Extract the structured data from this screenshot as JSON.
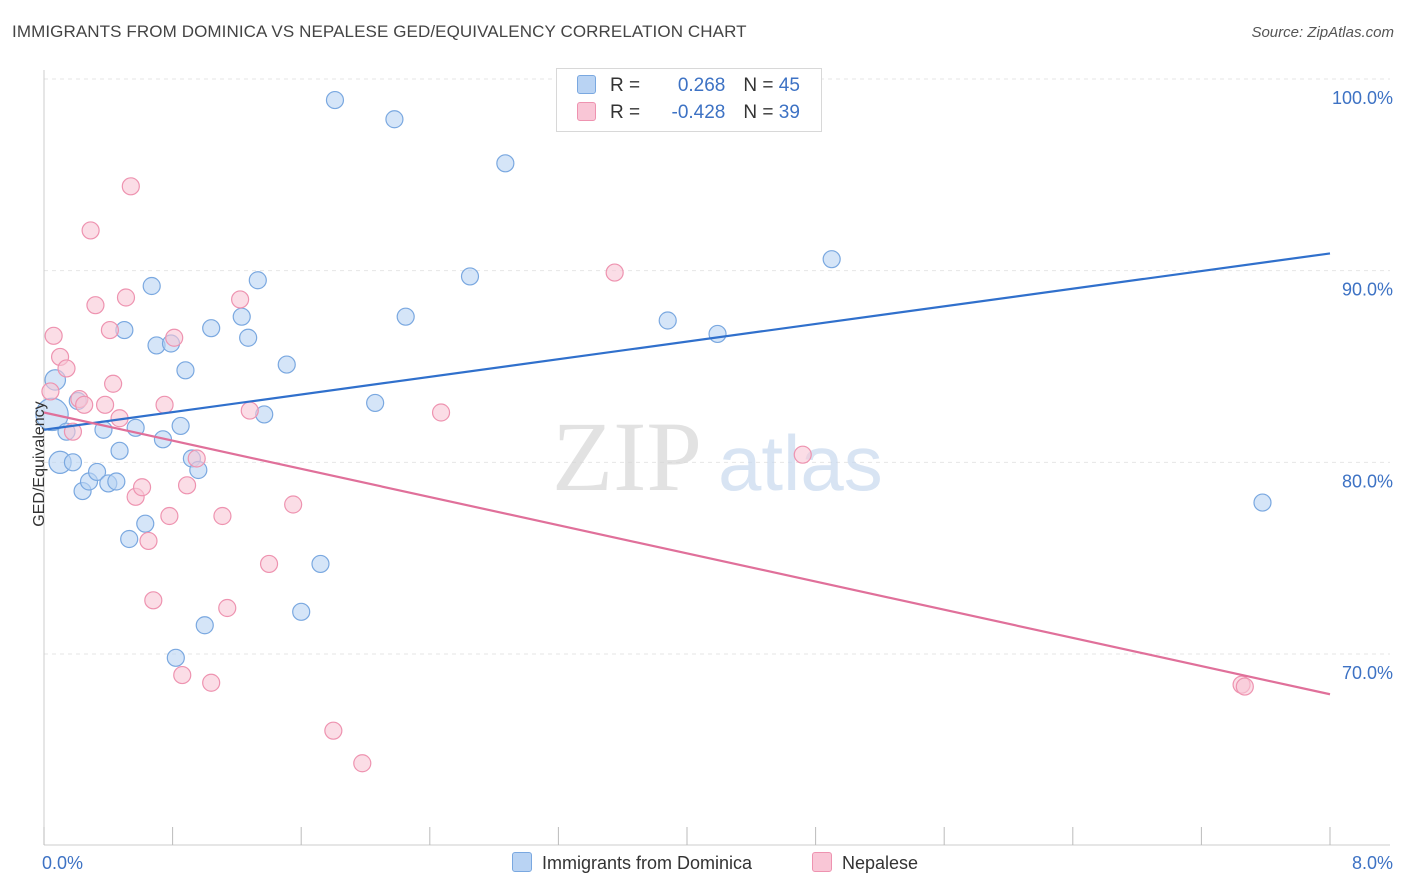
{
  "title": "IMMIGRANTS FROM DOMINICA VS NEPALESE GED/EQUIVALENCY CORRELATION CHART",
  "source": "Source: ZipAtlas.com",
  "watermark": {
    "zip": "ZIP",
    "atlas": "atlas"
  },
  "colors": {
    "blue_fill": "#b9d3f3",
    "blue_stroke": "#7aa8e0",
    "blue_line": "#3070cc",
    "pink_fill": "#f9c6d6",
    "pink_stroke": "#ee93b0",
    "pink_line": "#e0709a",
    "axis_text": "#3d72c4",
    "grid": "#e6e6e6"
  },
  "legend_top": [
    {
      "r_label": "R = ",
      "r_value": "0.268",
      "n_label": "N = ",
      "n_value": "45",
      "color": "#b9d3f3",
      "stroke": "#7aa8e0"
    },
    {
      "r_label": "R = ",
      "r_value": "-0.428",
      "n_label": "N = ",
      "n_value": "39",
      "color": "#f9c6d6",
      "stroke": "#ee93b0"
    }
  ],
  "legend_bottom": [
    {
      "label": "Immigrants from Dominica",
      "color": "#b9d3f3",
      "stroke": "#7aa8e0"
    },
    {
      "label": "Nepalese",
      "color": "#f9c6d6",
      "stroke": "#ee93b0"
    }
  ],
  "chart_data": {
    "type": "scatter",
    "title": "IMMIGRANTS FROM DOMINICA VS NEPALESE GED/EQUIVALENCY CORRELATION CHART",
    "xlabel": "",
    "ylabel": "GED/Equivalency",
    "xlim": [
      0,
      8
    ],
    "ylim": [
      60,
      101
    ],
    "x_tick_labels": [
      {
        "value": 0,
        "label": "0.0%"
      },
      {
        "value": 8,
        "label": "8.0%"
      }
    ],
    "y_tick_labels": [
      {
        "value": 100,
        "label": "100.0%"
      },
      {
        "value": 90,
        "label": "90.0%"
      },
      {
        "value": 80,
        "label": "80.0%"
      },
      {
        "value": 70,
        "label": "70.0%"
      }
    ],
    "x_minor_ticks": [
      0,
      0.8,
      1.6,
      2.4,
      3.2,
      4.0,
      4.8,
      5.6,
      6.4,
      7.2,
      8.0
    ],
    "grid": true,
    "series": [
      {
        "name": "Immigrants from Dominica",
        "R": 0.268,
        "N": 45,
        "trend": {
          "x0": 0,
          "y0": 81.7,
          "x1": 8,
          "y1": 90.9
        },
        "points": [
          [
            0.05,
            82.5,
            1.9
          ],
          [
            0.07,
            84.3,
            1.2
          ],
          [
            0.1,
            80.0,
            1.3
          ],
          [
            0.14,
            81.6,
            1
          ],
          [
            0.18,
            80.0,
            1
          ],
          [
            0.21,
            83.2,
            1
          ],
          [
            0.24,
            78.5,
            1
          ],
          [
            0.28,
            79.0,
            1
          ],
          [
            0.33,
            79.5,
            1
          ],
          [
            0.37,
            81.7,
            1
          ],
          [
            0.4,
            78.9,
            1
          ],
          [
            0.45,
            79.0,
            1
          ],
          [
            0.47,
            80.6,
            1
          ],
          [
            0.5,
            86.9,
            1
          ],
          [
            0.53,
            76.0,
            1
          ],
          [
            0.57,
            81.8,
            1
          ],
          [
            0.63,
            76.8,
            1
          ],
          [
            0.67,
            89.2,
            1
          ],
          [
            0.7,
            86.1,
            1
          ],
          [
            0.74,
            81.2,
            1
          ],
          [
            0.79,
            86.2,
            1
          ],
          [
            0.82,
            69.8,
            1
          ],
          [
            0.85,
            81.9,
            1
          ],
          [
            0.88,
            84.8,
            1
          ],
          [
            0.92,
            80.2,
            1
          ],
          [
            0.96,
            79.6,
            1
          ],
          [
            1.0,
            71.5,
            1
          ],
          [
            1.04,
            87.0,
            1
          ],
          [
            1.23,
            87.6,
            1
          ],
          [
            1.27,
            86.5,
            1
          ],
          [
            1.33,
            89.5,
            1
          ],
          [
            1.37,
            82.5,
            1
          ],
          [
            1.51,
            85.1,
            1
          ],
          [
            1.6,
            72.2,
            1
          ],
          [
            1.72,
            74.7,
            1
          ],
          [
            1.81,
            98.9,
            1
          ],
          [
            2.06,
            83.1,
            1
          ],
          [
            2.18,
            97.9,
            1
          ],
          [
            2.25,
            87.6,
            1
          ],
          [
            2.65,
            89.7,
            1
          ],
          [
            2.87,
            95.6,
            1
          ],
          [
            3.88,
            87.4,
            1
          ],
          [
            4.19,
            86.7,
            1
          ],
          [
            4.9,
            90.6,
            1
          ],
          [
            7.58,
            77.9,
            1
          ]
        ]
      },
      {
        "name": "Nepalese",
        "R": -0.428,
        "N": 39,
        "trend": {
          "x0": 0,
          "y0": 82.6,
          "x1": 8,
          "y1": 67.9
        },
        "points": [
          [
            0.04,
            83.7,
            1
          ],
          [
            0.06,
            86.6,
            1
          ],
          [
            0.1,
            85.5,
            1
          ],
          [
            0.14,
            84.9,
            1
          ],
          [
            0.18,
            81.6,
            1
          ],
          [
            0.22,
            83.3,
            1
          ],
          [
            0.25,
            83.0,
            1
          ],
          [
            0.29,
            92.1,
            1
          ],
          [
            0.32,
            88.2,
            1
          ],
          [
            0.38,
            83.0,
            1
          ],
          [
            0.41,
            86.9,
            1
          ],
          [
            0.43,
            84.1,
            1
          ],
          [
            0.47,
            82.3,
            1
          ],
          [
            0.51,
            88.6,
            1
          ],
          [
            0.54,
            94.4,
            1
          ],
          [
            0.57,
            78.2,
            1
          ],
          [
            0.61,
            78.7,
            1
          ],
          [
            0.65,
            75.9,
            1
          ],
          [
            0.68,
            72.8,
            1
          ],
          [
            0.75,
            83.0,
            1
          ],
          [
            0.78,
            77.2,
            1
          ],
          [
            0.81,
            86.5,
            1
          ],
          [
            0.86,
            68.9,
            1
          ],
          [
            0.89,
            78.8,
            1
          ],
          [
            0.95,
            80.2,
            1
          ],
          [
            1.04,
            68.5,
            1
          ],
          [
            1.11,
            77.2,
            1
          ],
          [
            1.14,
            72.4,
            1
          ],
          [
            1.22,
            88.5,
            1
          ],
          [
            1.28,
            82.7,
            1
          ],
          [
            1.4,
            74.7,
            1
          ],
          [
            1.55,
            77.8,
            1
          ],
          [
            1.8,
            66.0,
            1
          ],
          [
            1.98,
            64.3,
            1
          ],
          [
            2.47,
            82.6,
            1
          ],
          [
            3.55,
            89.9,
            1
          ],
          [
            4.72,
            80.4,
            1
          ],
          [
            7.45,
            68.4,
            1
          ],
          [
            7.47,
            68.3,
            1
          ]
        ]
      }
    ]
  }
}
